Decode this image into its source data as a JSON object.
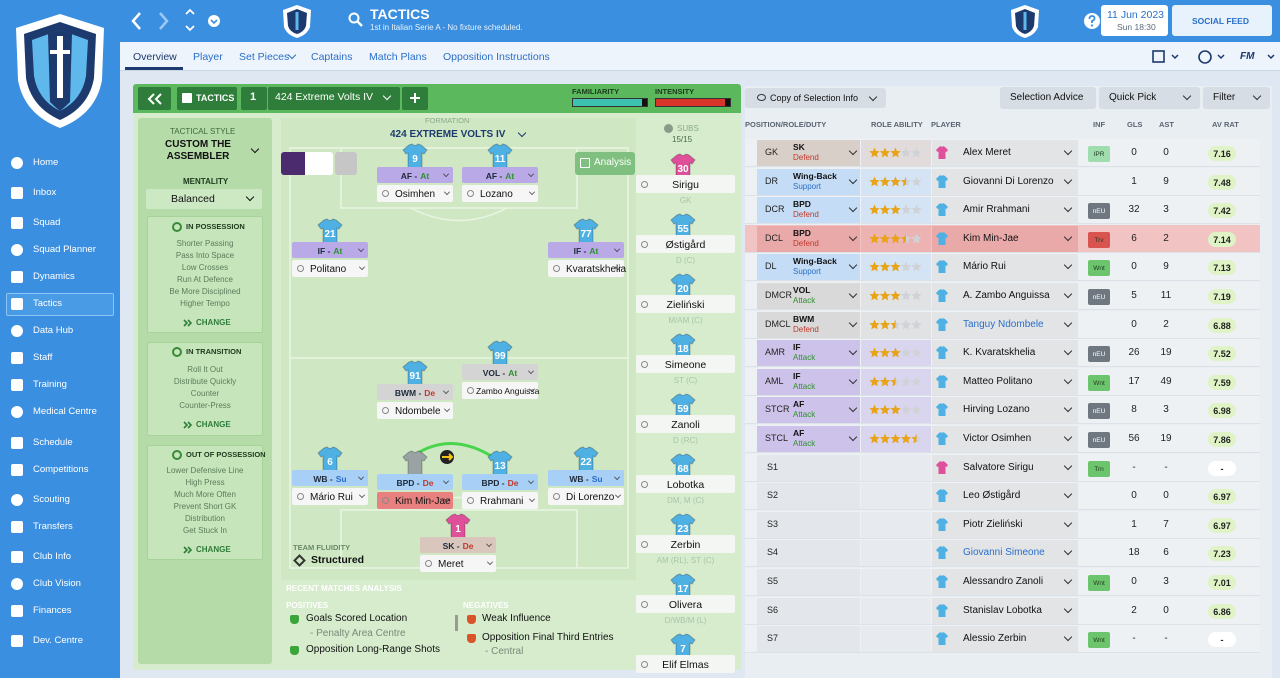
{
  "header": {
    "title": "TACTICS",
    "subtitle": "1st in Italian Serie A - No fixture scheduled.",
    "date": "11 Jun 2023",
    "time": "Sun 18:30",
    "social": "SOCIAL FEED",
    "game": "FM"
  },
  "nav": [
    "Home",
    "Inbox",
    "Squad",
    "Squad Planner",
    "Dynamics",
    "Tactics",
    "Data Hub",
    "Staff",
    "Training",
    "Medical Centre",
    "Schedule",
    "Competitions",
    "Scouting",
    "Transfers",
    "Club Info",
    "Club Vision",
    "Finances",
    "Dev. Centre"
  ],
  "tabs": [
    "Overview",
    "Player",
    "Set Pieces",
    "Captains",
    "Match Plans",
    "Opposition Instructions"
  ],
  "tactic_bar": {
    "label": "TACTICS",
    "slot": 1,
    "name": "424 Extreme Volts IV",
    "familiarity_label": "FAMILIARITY",
    "familiarity": 93,
    "intensity_label": "INTENSITY",
    "intensity": 93
  },
  "style_panel": {
    "heading": "TACTICAL STYLE",
    "style": "CUSTOM THE ASSEMBLER",
    "mentality_label": "MENTALITY",
    "mentality": "Balanced",
    "groups": [
      {
        "title": "IN POSSESSION",
        "items": [
          "Shorter Passing",
          "Pass Into Space",
          "Low Crosses",
          "Run At Defence",
          "Be More Disciplined",
          "Higher Tempo"
        ],
        "action": "CHANGE"
      },
      {
        "title": "IN TRANSITION",
        "items": [
          "Roll It Out",
          "Distribute Quickly",
          "Counter",
          "Counter-Press"
        ],
        "action": "CHANGE"
      },
      {
        "title": "OUT OF POSSESSION",
        "items": [
          "Lower Defensive Line",
          "High Press",
          "Much More Often",
          "Prevent Short GK",
          "Distribution",
          "Get Stuck In"
        ],
        "action": "CHANGE"
      }
    ]
  },
  "pitch": {
    "formation_label": "FORMATION",
    "formation": "424 EXTREME VOLTS IV",
    "subs_label": "SUBS",
    "subs_count": "15/15",
    "analysis": "Analysis",
    "fluidity_label": "TEAM FLUIDITY",
    "fluidity": "Structured",
    "players": [
      {
        "number": 9,
        "role": "AF -",
        "duty": "At",
        "name": "Osimhen"
      },
      {
        "number": 11,
        "role": "AF -",
        "duty": "At",
        "name": "Lozano"
      },
      {
        "number": 21,
        "role": "IF -",
        "duty": "At",
        "name": "Politano"
      },
      {
        "number": 77,
        "role": "IF -",
        "duty": "At",
        "name": "Kvaratskhelia"
      },
      {
        "number": 99,
        "role": "VOL -",
        "duty": "At",
        "name": "Zambo Anguissa"
      },
      {
        "number": 91,
        "role": "BWM -",
        "duty": "De",
        "name": "Ndombele"
      },
      {
        "number": 6,
        "role": "WB -",
        "duty": "Su",
        "name": "Mário Rui"
      },
      {
        "number": null,
        "role": "BPD -",
        "duty": "De",
        "name": "Kim Min-Jae"
      },
      {
        "number": 13,
        "role": "BPD -",
        "duty": "De",
        "name": "Rrahmani"
      },
      {
        "number": 22,
        "role": "WB -",
        "duty": "Su",
        "name": "Di Lorenzo"
      },
      {
        "number": 1,
        "role": "SK -",
        "duty": "De",
        "name": "Meret"
      }
    ]
  },
  "subs": [
    {
      "number": 30,
      "name": "Sirigu",
      "position": "GK"
    },
    {
      "number": 55,
      "name": "Østigård",
      "position": "D (C)"
    },
    {
      "number": 20,
      "name": "Zieliński",
      "position": "M/AM (C)"
    },
    {
      "number": 18,
      "name": "Simeone",
      "position": "ST (C)"
    },
    {
      "number": 59,
      "name": "Zanoli",
      "position": "D (RC)"
    },
    {
      "number": 68,
      "name": "Lobotka",
      "position": "DM, M (C)"
    },
    {
      "number": 23,
      "name": "Zerbin",
      "position": "AM (RL), ST (C)"
    },
    {
      "number": 17,
      "name": "Olivera",
      "position": "D/WB/M (L)"
    },
    {
      "number": 7,
      "name": "Elif Elmas",
      "position": ""
    }
  ],
  "analysis": {
    "title": "RECENT MATCHES ANALYSIS",
    "positives_label": "POSITIVES",
    "positives": [
      {
        "text": "Goals Scored Location",
        "detail": "- Penalty Area Centre"
      },
      {
        "text": "Opposition Long-Range Shots"
      }
    ],
    "negatives_label": "NEGATIVES",
    "negatives": [
      {
        "text": "Weak Influence"
      },
      {
        "text": "Opposition Final Third Entries",
        "detail": "- Central"
      }
    ]
  },
  "selection": {
    "buttons": [
      "Copy of Selection Info",
      "Selection Advice",
      "Quick Pick",
      "Filter"
    ],
    "columns": [
      "POSITION/ROLE/DUTY",
      "ROLE ABILITY",
      "PLAYER",
      "INF",
      "GLS",
      "AST",
      "AV RAT"
    ],
    "rows": [
      {
        "position": "GK",
        "role": "SK",
        "duty": "Defend",
        "stars": 3,
        "player": "Alex Meret",
        "inf": {
          "label": "IPR",
          "color": "#9fdcae"
        },
        "gls": 0,
        "ast": 0,
        "rating": 7.16
      },
      {
        "position": "DR",
        "role": "Wing-Back",
        "duty": "Support",
        "stars": 3.5,
        "player": "Giovanni Di Lorenzo",
        "gls": 1,
        "ast": 9,
        "rating": 7.48
      },
      {
        "position": "DCR",
        "role": "BPD",
        "duty": "Defend",
        "stars": 3,
        "player": "Amir Rrahmani",
        "inf": {
          "label": "nEU",
          "color": "#6f7780"
        },
        "gls": 32,
        "ast": 3,
        "rating": 7.42
      },
      {
        "position": "DCL",
        "role": "BPD",
        "duty": "Defend",
        "stars": 3.5,
        "player": "Kim Min-Jae",
        "inf": {
          "label": "Trv",
          "color": "#d9534f"
        },
        "gls": 6,
        "ast": 2,
        "rating": 7.14,
        "highlight": true
      },
      {
        "position": "DL",
        "role": "Wing-Back",
        "duty": "Support",
        "stars": 3,
        "player": "Mário Rui",
        "inf": {
          "label": "Wnt",
          "color": "#6cc46c"
        },
        "gls": 0,
        "ast": 9,
        "rating": 7.13
      },
      {
        "position": "DMCR",
        "role": "VOL",
        "duty": "Attack",
        "stars": 3,
        "player": "A. Zambo Anguissa",
        "inf": {
          "label": "nEU",
          "color": "#6f7780"
        },
        "gls": 5,
        "ast": 11,
        "rating": 7.19
      },
      {
        "position": "DMCL",
        "role": "BWM",
        "duty": "Defend",
        "stars": 2.5,
        "player": "Tanguy Ndombele",
        "link": true,
        "gls": 0,
        "ast": 2,
        "rating": 6.88
      },
      {
        "position": "AMR",
        "role": "IF",
        "duty": "Attack",
        "stars": 3,
        "player": "K. Kvaratskhelia",
        "inf": {
          "label": "nEU",
          "color": "#6f7780"
        },
        "gls": 26,
        "ast": 19,
        "rating": 7.52
      },
      {
        "position": "AML",
        "role": "IF",
        "duty": "Attack",
        "stars": 2.5,
        "player": "Matteo Politano",
        "inf": {
          "label": "Wnt",
          "color": "#6cc46c"
        },
        "gls": 17,
        "ast": 49,
        "rating": 7.59
      },
      {
        "position": "STCR",
        "role": "AF",
        "duty": "Attack",
        "stars": 3,
        "player": "Hirving Lozano",
        "inf": {
          "label": "nEU",
          "color": "#6f7780"
        },
        "gls": 8,
        "ast": 3,
        "rating": 6.98
      },
      {
        "position": "STCL",
        "role": "AF",
        "duty": "Attack",
        "stars": 4.5,
        "player": "Victor Osimhen",
        "inf": {
          "label": "nEU",
          "color": "#6f7780"
        },
        "gls": 56,
        "ast": 19,
        "rating": 7.86
      },
      {
        "position": "S1",
        "player": "Salvatore Sirigu",
        "inf": {
          "label": "Trn",
          "color": "#6cc46c"
        },
        "gls": "-",
        "ast": "-",
        "rating": "-"
      },
      {
        "position": "S2",
        "player": "Leo Østigård",
        "gls": 0,
        "ast": 0,
        "rating": 6.97
      },
      {
        "position": "S3",
        "player": "Piotr Zieliński",
        "gls": 1,
        "ast": 7,
        "rating": 6.97
      },
      {
        "position": "S4",
        "player": "Giovanni Simeone",
        "link": true,
        "gls": 18,
        "ast": 6,
        "rating": 7.23
      },
      {
        "position": "S5",
        "player": "Alessandro Zanoli",
        "inf": {
          "label": "Wnt",
          "color": "#6cc46c"
        },
        "gls": 0,
        "ast": 3,
        "rating": 7.01
      },
      {
        "position": "S6",
        "player": "Stanislav Lobotka",
        "gls": 2,
        "ast": 0,
        "rating": 6.86
      },
      {
        "position": "S7",
        "player": "Alessio Zerbin",
        "inf": {
          "label": "Wnt",
          "color": "#6cc46c"
        },
        "gls": "-",
        "ast": "-",
        "rating": "-"
      }
    ]
  }
}
